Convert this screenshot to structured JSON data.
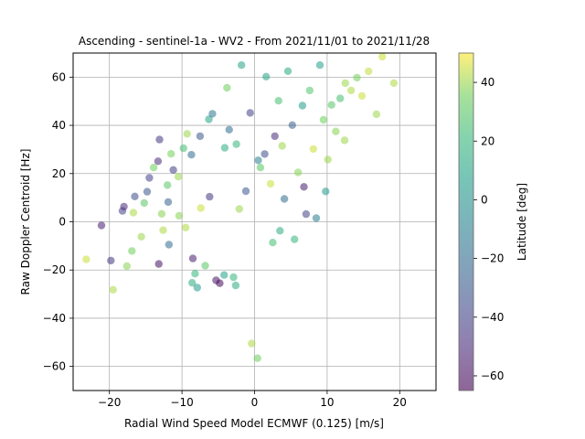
{
  "chart_data": {
    "type": "scatter",
    "title": "Ascending - sentinel-1a - WV2 - From 2021/11/01 to 2021/11/28",
    "xlabel": "Radial Wind Speed Model ECMWF (0.125) [m/s]",
    "ylabel": "Raw Doppler Centroid [Hz]",
    "xlim": [
      -25,
      25
    ],
    "ylim": [
      -70,
      70
    ],
    "xticks": [
      -20,
      -10,
      0,
      10,
      20
    ],
    "yticks": [
      -60,
      -40,
      -20,
      0,
      20,
      40,
      60
    ],
    "grid": true,
    "colormap": "viridis",
    "marker_alpha": 0.55,
    "colorbar": {
      "label": "Latitude [deg]",
      "range": [
        -65,
        50
      ],
      "ticks": [
        -60,
        -40,
        -20,
        0,
        20,
        40
      ]
    },
    "points": [
      [
        -23.2,
        -15.6,
        45
      ],
      [
        -21.1,
        -1.5,
        -55
      ],
      [
        -19.8,
        -16.1,
        -45
      ],
      [
        -19.5,
        -28.2,
        42
      ],
      [
        -17.6,
        -18.4,
        38
      ],
      [
        -18.2,
        4.5,
        -40
      ],
      [
        -18.0,
        6.3,
        -50
      ],
      [
        -16.9,
        -12.1,
        35
      ],
      [
        -16.7,
        3.8,
        42
      ],
      [
        -15.6,
        -6.2,
        40
      ],
      [
        -15.2,
        7.8,
        30
      ],
      [
        -14.8,
        12.5,
        -30
      ],
      [
        -14.5,
        18.2,
        -40
      ],
      [
        -13.9,
        22.5,
        35
      ],
      [
        -13.3,
        25.1,
        -50
      ],
      [
        -13.1,
        34.1,
        -45
      ],
      [
        -13.2,
        -17.5,
        -60
      ],
      [
        -12.8,
        3.3,
        38
      ],
      [
        -12.6,
        -3.5,
        42
      ],
      [
        -12.0,
        15.2,
        30
      ],
      [
        -11.9,
        8.2,
        -25
      ],
      [
        -11.5,
        28.2,
        36
      ],
      [
        -11.2,
        21.5,
        -42
      ],
      [
        -10.5,
        18.7,
        40
      ],
      [
        -9.8,
        30.5,
        25
      ],
      [
        -9.3,
        36.5,
        40
      ],
      [
        -8.7,
        27.8,
        -20
      ],
      [
        -8.5,
        -15.2,
        -55
      ],
      [
        -8.2,
        -21.5,
        20
      ],
      [
        -8.6,
        -25.3,
        15
      ],
      [
        -7.9,
        -27.3,
        5
      ],
      [
        -7.4,
        5.7,
        45
      ],
      [
        -6.8,
        -18.2,
        30
      ],
      [
        -6.3,
        42.5,
        10
      ],
      [
        -5.8,
        44.8,
        -15
      ],
      [
        -5.3,
        -24.3,
        -58
      ],
      [
        -4.8,
        -25.5,
        -62
      ],
      [
        -4.2,
        -22.1,
        8
      ],
      [
        -3.8,
        55.6,
        35
      ],
      [
        -3.5,
        38.2,
        -20
      ],
      [
        -2.9,
        -23.0,
        20
      ],
      [
        -2.6,
        -26.4,
        15
      ],
      [
        -2.1,
        5.3,
        40
      ],
      [
        -1.8,
        65.0,
        10
      ],
      [
        -1.2,
        12.7,
        -30
      ],
      [
        -0.6,
        45.2,
        -40
      ],
      [
        -0.4,
        -50.5,
        42
      ],
      [
        0.4,
        -56.6,
        35
      ],
      [
        0.8,
        22.5,
        30
      ],
      [
        1.4,
        28.1,
        -35
      ],
      [
        1.6,
        60.2,
        10
      ],
      [
        2.2,
        15.8,
        45
      ],
      [
        2.8,
        35.5,
        -50
      ],
      [
        3.3,
        50.2,
        25
      ],
      [
        3.5,
        -3.7,
        15
      ],
      [
        4.1,
        9.5,
        -20
      ],
      [
        4.6,
        62.5,
        12
      ],
      [
        5.2,
        40.1,
        -25
      ],
      [
        5.5,
        -7.3,
        20
      ],
      [
        6.0,
        20.5,
        38
      ],
      [
        6.6,
        48.2,
        5
      ],
      [
        7.1,
        3.2,
        -40
      ],
      [
        7.6,
        54.5,
        28
      ],
      [
        8.1,
        30.2,
        45
      ],
      [
        8.5,
        1.5,
        -10
      ],
      [
        9.0,
        65.0,
        8
      ],
      [
        9.5,
        42.3,
        35
      ],
      [
        10.1,
        25.8,
        40
      ],
      [
        10.6,
        48.5,
        30
      ],
      [
        11.2,
        37.5,
        38
      ],
      [
        11.8,
        51.2,
        25
      ],
      [
        12.5,
        57.5,
        40
      ],
      [
        13.3,
        54.5,
        42
      ],
      [
        14.1,
        59.8,
        36
      ],
      [
        14.8,
        52.2,
        45
      ],
      [
        15.7,
        62.4,
        44
      ],
      [
        16.8,
        44.6,
        40
      ],
      [
        17.6,
        68.5,
        45
      ],
      [
        19.2,
        57.5,
        42
      ],
      [
        -16.5,
        10.5,
        -35
      ],
      [
        -10.4,
        2.5,
        38
      ],
      [
        -6.2,
        10.4,
        -45
      ],
      [
        -2.5,
        32.2,
        20
      ],
      [
        2.5,
        -8.6,
        25
      ],
      [
        6.8,
        14.5,
        -55
      ],
      [
        9.8,
        12.6,
        5
      ],
      [
        12.4,
        33.8,
        40
      ],
      [
        -7.5,
        35.5,
        -30
      ],
      [
        -4.1,
        30.7,
        15
      ],
      [
        0.5,
        25.5,
        -10
      ],
      [
        3.8,
        31.5,
        40
      ],
      [
        -11.8,
        -9.5,
        -20
      ],
      [
        -9.5,
        -2.4,
        42
      ]
    ]
  }
}
